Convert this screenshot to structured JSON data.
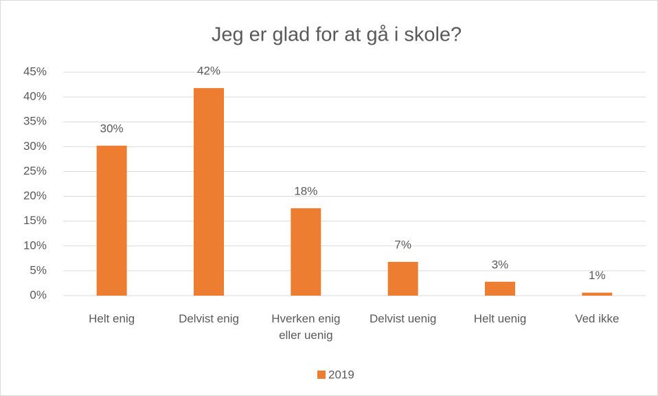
{
  "chart_data": {
    "type": "bar",
    "title": "Jeg er glad for at gå i skole?",
    "categories": [
      "Helt enig",
      "Delvist enig",
      "Hverken enig eller uenig",
      "Delvist uenig",
      "Helt uenig",
      "Ved ikke"
    ],
    "series": [
      {
        "name": "2019",
        "color": "#ed7d31",
        "values": [
          30.2,
          41.8,
          17.6,
          6.8,
          2.8,
          0.6
        ],
        "value_labels": [
          "30%",
          "42%",
          "18%",
          "7%",
          "3%",
          "1%"
        ]
      }
    ],
    "ylim": [
      0,
      45
    ],
    "yticks": [
      {
        "value": 0,
        "label": "0%"
      },
      {
        "value": 5,
        "label": "5%"
      },
      {
        "value": 10,
        "label": "10%"
      },
      {
        "value": 15,
        "label": "15%"
      },
      {
        "value": 20,
        "label": "20%"
      },
      {
        "value": 25,
        "label": "25%"
      },
      {
        "value": 30,
        "label": "30%"
      },
      {
        "value": 35,
        "label": "35%"
      },
      {
        "value": 40,
        "label": "40%"
      },
      {
        "value": 45,
        "label": "45%"
      }
    ],
    "grid": true,
    "legend": "bottom"
  }
}
